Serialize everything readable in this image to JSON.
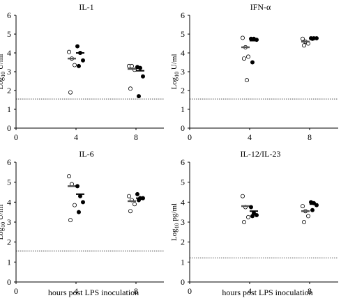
{
  "chart_data": [
    {
      "type": "scatter",
      "title": "IL-1",
      "xlabel": "",
      "ylabel": "Log10 U/ml",
      "ylabel_base": "Log",
      "ylabel_sub": "10",
      "ylabel_rest": " U/ml",
      "xlim": [
        0,
        10
      ],
      "ylim": [
        0,
        6
      ],
      "xticks": [
        "0",
        "4",
        "8"
      ],
      "yticks": [
        "0",
        "1",
        "2",
        "3",
        "4",
        "5",
        "6"
      ],
      "detection_limit": 1.55,
      "series": [
        {
          "marker": "open",
          "timepoints": [
            {
              "x": 4,
              "values": [
                4.05,
                3.7,
                3.35,
                1.9
              ],
              "mean": 3.7
            },
            {
              "x": 8,
              "values": [
                3.3,
                3.3,
                3.1,
                2.1
              ],
              "mean": 3.15
            }
          ]
        },
        {
          "marker": "filled",
          "timepoints": [
            {
              "x": 4,
              "values": [
                4.35,
                4.0,
                3.6,
                3.3
              ],
              "mean": 4.0
            },
            {
              "x": 8,
              "values": [
                3.25,
                3.2,
                2.75,
                1.7
              ],
              "mean": 3.05
            }
          ]
        }
      ]
    },
    {
      "type": "scatter",
      "title": "IFN-α",
      "xlabel": "",
      "ylabel": "Log10 U/ml",
      "ylabel_base": "Log",
      "ylabel_sub": "10",
      "ylabel_rest": " U/ml",
      "xlim": [
        0,
        10
      ],
      "ylim": [
        0,
        6
      ],
      "xticks": [
        "0",
        "4",
        "8"
      ],
      "yticks": [
        "0",
        "1",
        "2",
        "3",
        "4",
        "5",
        "6"
      ],
      "detection_limit": 1.55,
      "series": [
        {
          "marker": "open",
          "timepoints": [
            {
              "x": 4,
              "values": [
                4.8,
                4.3,
                3.8,
                3.7,
                2.55
              ],
              "mean": 4.3
            },
            {
              "x": 8,
              "values": [
                4.75,
                4.6,
                4.5,
                4.4
              ],
              "mean": 4.6
            }
          ]
        },
        {
          "marker": "filled",
          "timepoints": [
            {
              "x": 4,
              "values": [
                4.75,
                4.75,
                4.7,
                3.5
              ],
              "mean": 4.65
            },
            {
              "x": 8,
              "values": [
                4.78,
                4.78,
                4.78,
                4.75
              ],
              "mean": 4.78
            }
          ]
        }
      ]
    },
    {
      "type": "scatter",
      "title": "IL-6",
      "xlabel": "hours post LPS inoculation",
      "ylabel": "Log10 U/ml",
      "ylabel_base": "Log",
      "ylabel_sub": "10",
      "ylabel_rest": " U/ml",
      "xlim": [
        0,
        10
      ],
      "ylim": [
        0,
        6
      ],
      "xticks": [
        "0",
        "4",
        "8"
      ],
      "yticks": [
        "0",
        "1",
        "2",
        "3",
        "4",
        "5",
        "6"
      ],
      "detection_limit": 1.55,
      "series": [
        {
          "marker": "open",
          "timepoints": [
            {
              "x": 4,
              "values": [
                5.3,
                4.9,
                3.85,
                3.1
              ],
              "mean": 4.8
            },
            {
              "x": 8,
              "values": [
                4.3,
                4.1,
                3.9,
                3.55
              ],
              "mean": 4.05
            }
          ]
        },
        {
          "marker": "filled",
          "timepoints": [
            {
              "x": 4,
              "values": [
                4.8,
                4.3,
                4.0,
                3.5
              ],
              "mean": 4.4
            },
            {
              "x": 8,
              "values": [
                4.4,
                4.2,
                4.2,
                4.1
              ],
              "mean": 4.2
            }
          ]
        }
      ]
    },
    {
      "type": "scatter",
      "title": "IL-12/IL-23",
      "xlabel": "hours post LPS inoculation",
      "ylabel": "Log10 pg/ml",
      "ylabel_base": "Log",
      "ylabel_sub": "10",
      "ylabel_rest": " pg/ml",
      "xlim": [
        0,
        10
      ],
      "ylim": [
        0,
        6
      ],
      "xticks": [
        "0",
        "4",
        "8"
      ],
      "yticks": [
        "0",
        "1",
        "2",
        "3",
        "4",
        "5",
        "6"
      ],
      "detection_limit": 1.2,
      "series": [
        {
          "marker": "open",
          "timepoints": [
            {
              "x": 4,
              "values": [
                4.3,
                3.75,
                3.25,
                3.0
              ],
              "mean": 3.8
            },
            {
              "x": 8,
              "values": [
                3.8,
                3.55,
                3.3,
                3.0
              ],
              "mean": 3.55
            }
          ]
        },
        {
          "marker": "filled",
          "timepoints": [
            {
              "x": 4,
              "values": [
                3.75,
                3.45,
                3.35,
                3.3
              ],
              "mean": 3.55
            },
            {
              "x": 8,
              "values": [
                4.0,
                3.95,
                3.85,
                3.6
              ],
              "mean": 3.9
            }
          ]
        }
      ]
    }
  ]
}
